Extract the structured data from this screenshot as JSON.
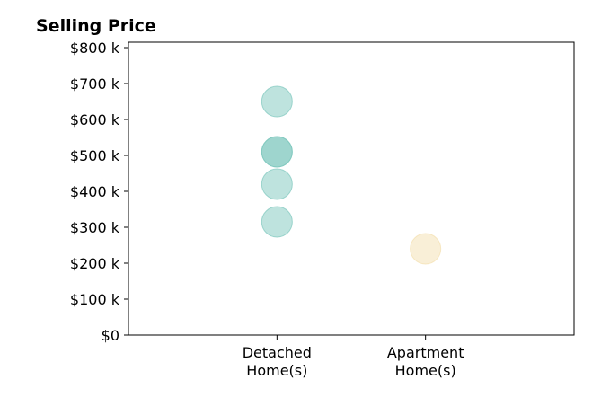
{
  "chart_data": {
    "type": "scatter",
    "title": "Selling Price",
    "xlabel": "",
    "ylabel": "",
    "categories": [
      [
        "Detached",
        "Home(s)"
      ],
      [
        "Apartment",
        "Home(s)"
      ]
    ],
    "yticks": [
      "$0",
      "$100 k",
      "$200 k",
      "$300 k",
      "$400 k",
      "$500 k",
      "$600 k",
      "$700 k",
      "$800 k"
    ],
    "ytick_values": [
      0,
      100000,
      200000,
      300000,
      400000,
      500000,
      600000,
      700000,
      800000
    ],
    "ylim": [
      0,
      815000
    ],
    "xlim": [
      -1,
      2
    ],
    "grid": false,
    "series": [
      {
        "category": 0,
        "color": "#7ec8be",
        "values": [
          650000,
          510000,
          510000,
          420000,
          315000
        ]
      },
      {
        "category": 1,
        "color": "#f3dfaf",
        "values": [
          240000
        ]
      }
    ]
  }
}
